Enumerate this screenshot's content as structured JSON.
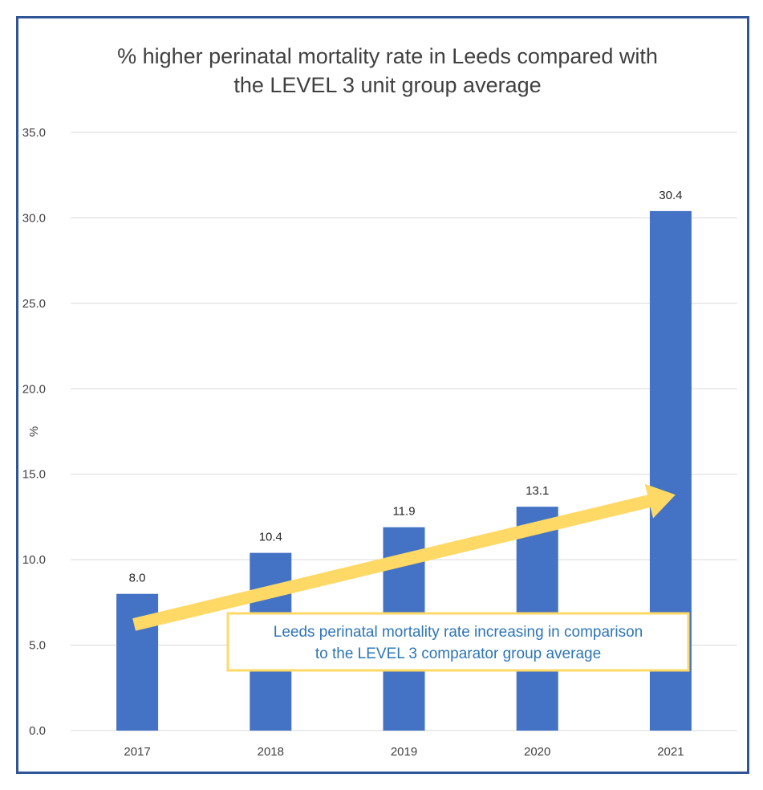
{
  "chart_data": {
    "type": "bar",
    "title_lines": [
      "% higher perinatal mortality rate in Leeds compared with",
      "the LEVEL 3 unit group average"
    ],
    "categories": [
      "2017",
      "2018",
      "2019",
      "2020",
      "2021"
    ],
    "values": [
      8.0,
      10.4,
      11.9,
      13.1,
      30.4
    ],
    "data_labels": [
      "8.0",
      "10.4",
      "11.9",
      "13.1",
      "30.4"
    ],
    "xlabel": "",
    "ylabel": "%",
    "ylim": [
      0,
      35
    ],
    "yticks": [
      0,
      5,
      10,
      15,
      20,
      25,
      30,
      35
    ],
    "ytick_labels": [
      "0.0",
      "5.0",
      "10.0",
      "15.0",
      "20.0",
      "25.0",
      "30.0",
      "35.0"
    ],
    "grid": true,
    "legend": "none",
    "annotation": {
      "lines": [
        "Leeds perinatal mortality rate increasing in comparison",
        "to the LEVEL 3 comparator group average"
      ]
    },
    "trend_arrow": {
      "from": {
        "category_index": 0,
        "value": 6.2
      },
      "to": {
        "category_index": 4,
        "value": 13.8
      }
    }
  },
  "colors": {
    "bar": "#4472c4",
    "frame": "#2f5597",
    "grid": "#d9d9d9",
    "arrow": "#ffd966",
    "annotation_border": "#ffd966",
    "annotation_text": "#2e75b6"
  }
}
